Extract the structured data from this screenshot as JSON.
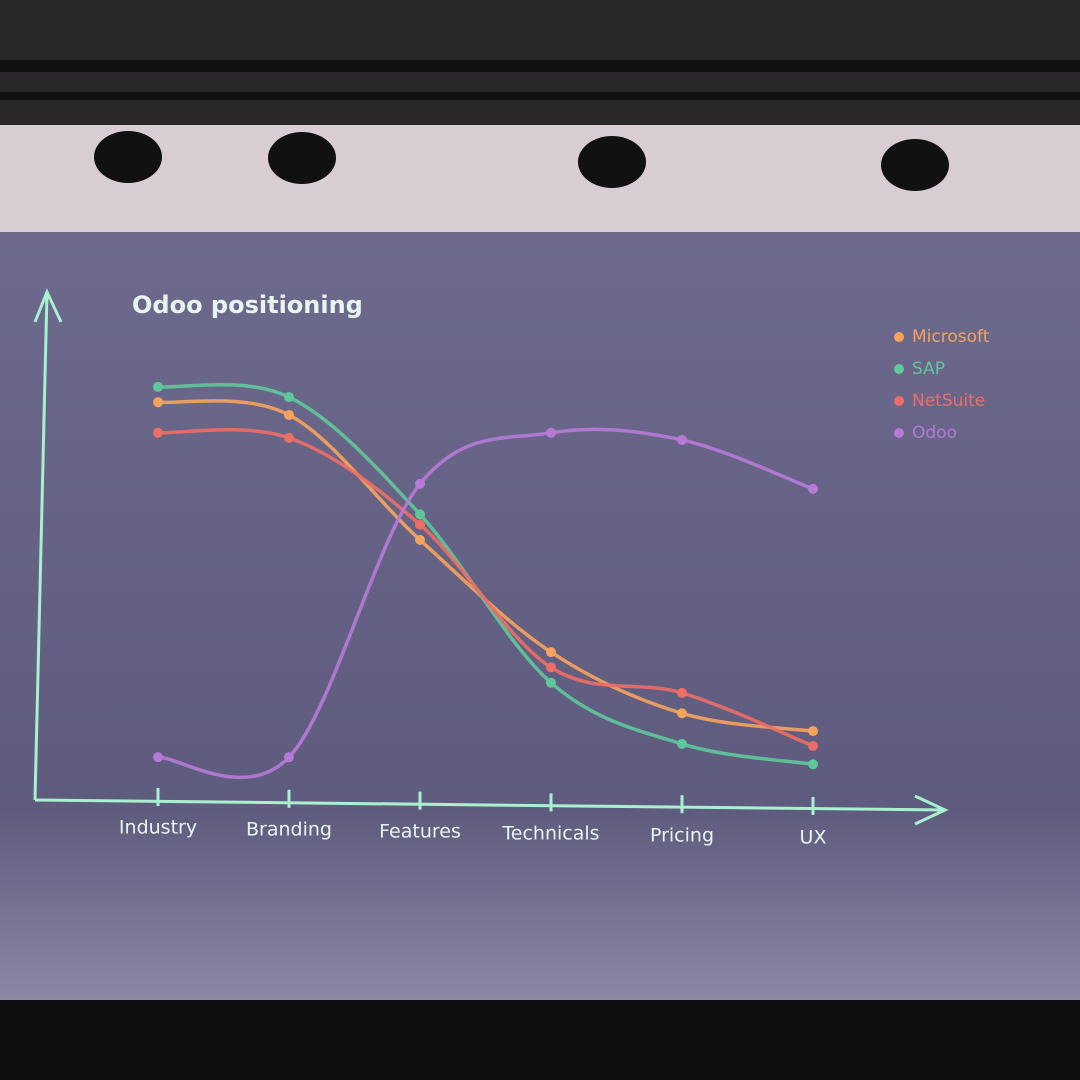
{
  "chart_data": {
    "type": "line",
    "title": "Odoo positioning",
    "categories": [
      "Industry",
      "Branding",
      "Features",
      "Technicals",
      "Pricing",
      "UX"
    ],
    "ylim": [
      0,
      100
    ],
    "legend": "top-right",
    "series": [
      {
        "name": "Microsoft",
        "color": "#f4a25c",
        "values": [
          78,
          75.5,
          51,
          29,
          17,
          13.5
        ]
      },
      {
        "name": "SAP",
        "color": "#5fc79a",
        "values": [
          81,
          79,
          56,
          23,
          11,
          7
        ]
      },
      {
        "name": "NetSuite",
        "color": "#ec6e66",
        "values": [
          72,
          71,
          54,
          26,
          21,
          10.6
        ]
      },
      {
        "name": "Odoo",
        "color": "#b679d6",
        "values": [
          8.4,
          8.4,
          62,
          72,
          70.6,
          61
        ]
      }
    ]
  }
}
